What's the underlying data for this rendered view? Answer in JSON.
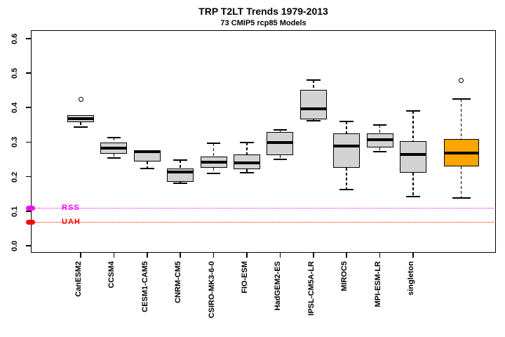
{
  "title": "TRP T2LT Trends 1979-2013",
  "subtitle": "73 CMIP5 rcp85 Models",
  "chart_data": {
    "type": "boxplot",
    "title": "TRP T2LT Trends 1979-2013",
    "subtitle": "73 CMIP5 rcp85 Models",
    "ylim": [
      0.0,
      0.6
    ],
    "y_ticks": [
      0.0,
      0.1,
      0.2,
      0.3,
      0.4,
      0.5,
      0.6
    ],
    "y_tick_labels": [
      "0.0",
      "0.1",
      "0.2",
      "0.3",
      "0.4",
      "0.5",
      "0.6"
    ],
    "grid": false,
    "legend": "none",
    "box_fill": "#D3D3D3",
    "highlight_fill": "#FFA500",
    "box_border_color": "#000000",
    "models": [
      {
        "label": "CanESM2",
        "position": 1,
        "stats": {
          "low": 0.343,
          "q1": 0.357,
          "median": 0.367,
          "q3": 0.379,
          "high": 0.379
        },
        "outliers": [
          0.424
        ]
      },
      {
        "label": "CCSM4",
        "position": 2,
        "stats": {
          "low": 0.254,
          "q1": 0.266,
          "median": 0.282,
          "q3": 0.298,
          "high": 0.312
        },
        "outliers": []
      },
      {
        "label": "CESM1-CAM5",
        "position": 3,
        "stats": {
          "low": 0.223,
          "q1": 0.243,
          "median": 0.272,
          "q3": 0.275,
          "high": 0.275
        },
        "outliers": []
      },
      {
        "label": "CNRM-CM5",
        "position": 4,
        "stats": {
          "low": 0.18,
          "q1": 0.185,
          "median": 0.213,
          "q3": 0.223,
          "high": 0.247
        },
        "outliers": []
      },
      {
        "label": "CSIRO-MK3-6-0",
        "position": 5,
        "stats": {
          "low": 0.209,
          "q1": 0.225,
          "median": 0.241,
          "q3": 0.258,
          "high": 0.296
        },
        "outliers": []
      },
      {
        "label": "FIO-ESM",
        "position": 6,
        "stats": {
          "low": 0.211,
          "q1": 0.221,
          "median": 0.239,
          "q3": 0.264,
          "high": 0.298
        },
        "outliers": []
      },
      {
        "label": "HadGEM2-ES",
        "position": 7,
        "stats": {
          "low": 0.249,
          "q1": 0.262,
          "median": 0.298,
          "q3": 0.329,
          "high": 0.336
        },
        "outliers": []
      },
      {
        "label": "IPSL-CM5A-LR",
        "position": 8,
        "stats": {
          "low": 0.362,
          "q1": 0.366,
          "median": 0.397,
          "q3": 0.451,
          "high": 0.48
        },
        "outliers": []
      },
      {
        "label": "MIROC5",
        "position": 9,
        "stats": {
          "low": 0.162,
          "q1": 0.225,
          "median": 0.289,
          "q3": 0.325,
          "high": 0.359
        },
        "outliers": []
      },
      {
        "label": "MPI-ESM-LR",
        "position": 10,
        "stats": {
          "low": 0.272,
          "q1": 0.284,
          "median": 0.306,
          "q3": 0.325,
          "high": 0.349
        },
        "outliers": []
      },
      {
        "label": "singleton",
        "position": 11,
        "stats": {
          "low": 0.142,
          "q1": 0.211,
          "median": 0.264,
          "q3": 0.302,
          "high": 0.391
        },
        "outliers": []
      },
      {
        "label": "",
        "position": 12.45,
        "highlight": true,
        "stats": {
          "low": 0.138,
          "q1": 0.229,
          "median": 0.268,
          "q3": 0.308,
          "high": 0.424
        },
        "outliers": [
          0.479
        ]
      }
    ],
    "reference_lines": [
      {
        "label": "RSS",
        "value": 0.11,
        "color": "#FF00FF",
        "style": "dotted"
      },
      {
        "label": "UAH",
        "value": 0.069,
        "color": "#FF0000",
        "style": "dotted"
      }
    ]
  }
}
